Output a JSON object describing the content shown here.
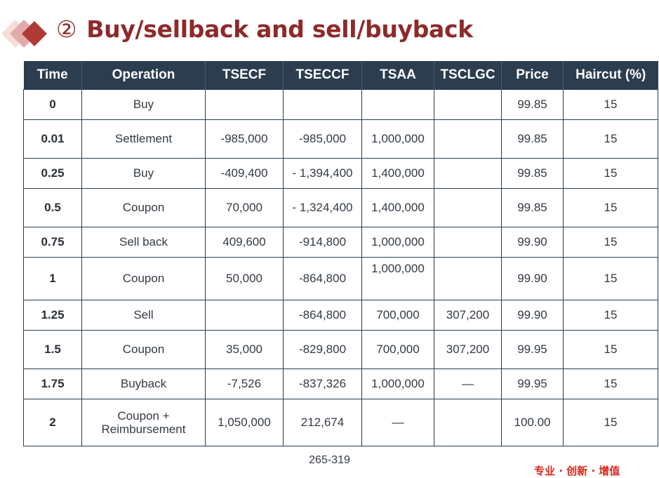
{
  "header": {
    "circle_number": "②",
    "title": "Buy/sellback and sell/buyback"
  },
  "table": {
    "columns": [
      "Time",
      "Operation",
      "TSECF",
      "TSECCF",
      "TSAA",
      "TSCLGC",
      "Price",
      "Haircut (%)"
    ],
    "rows": [
      {
        "time": "0",
        "operation": "Buy",
        "tsecf": "",
        "tseccf": "",
        "tsaa": "",
        "tsclgc": "",
        "price": "99.85",
        "haircut": "15"
      },
      {
        "time": "0.01",
        "operation": "Settlement",
        "tsecf": "-985,000",
        "tseccf": "-985,000",
        "tsaa": "1,000,000",
        "tsclgc": "",
        "price": "99.85",
        "haircut": "15"
      },
      {
        "time": "0.25",
        "operation": "Buy",
        "tsecf": "-409,400",
        "tseccf": "- 1,394,400",
        "tsaa": "1,400,000",
        "tsclgc": "",
        "price": "99.85",
        "haircut": "15"
      },
      {
        "time": "0.5",
        "operation": "Coupon",
        "tsecf": "70,000",
        "tseccf": "- 1,324,400",
        "tsaa": "1,400,000",
        "tsclgc": "",
        "price": "99.85",
        "haircut": "15"
      },
      {
        "time": "0.75",
        "operation": "Sell back",
        "tsecf": "409,600",
        "tseccf": "-914,800",
        "tsaa": "1,000,000",
        "tsclgc": "",
        "price": "99.90",
        "haircut": "15"
      },
      {
        "time": "1",
        "operation": "Coupon",
        "tsecf": "50,000",
        "tseccf": "-864,800",
        "tsaa": "1,000,000",
        "tsclgc": "",
        "price": "99.90",
        "haircut": "15"
      },
      {
        "time": "1.25",
        "operation": "Sell",
        "tsecf": "",
        "tseccf": "-864,800",
        "tsaa": "700,000",
        "tsclgc": "307,200",
        "price": "99.90",
        "haircut": "15"
      },
      {
        "time": "1.5",
        "operation": "Coupon",
        "tsecf": "35,000",
        "tseccf": "-829,800",
        "tsaa": "700,000",
        "tsclgc": "307,200",
        "price": "99.95",
        "haircut": "15"
      },
      {
        "time": "1.75",
        "operation": "Buyback",
        "tsecf": "-7,526",
        "tseccf": "-837,326",
        "tsaa": "1,000,000",
        "tsclgc": "—",
        "price": "99.95",
        "haircut": "15"
      },
      {
        "time": "2",
        "operation_line1": "Coupon +",
        "operation_line2": "Reimbursement",
        "tsecf": "1,050,000",
        "tseccf": "212,674",
        "tsaa": "—",
        "tsclgc": "",
        "price": "100.00",
        "haircut": "15"
      }
    ]
  },
  "footer": {
    "page_number": "265-319",
    "slogan": "专业 · 创新 · 增值"
  },
  "colors": {
    "title": "#8e2a2a",
    "header_bg": "#2b3d4f",
    "slogan": "#d9261c"
  }
}
